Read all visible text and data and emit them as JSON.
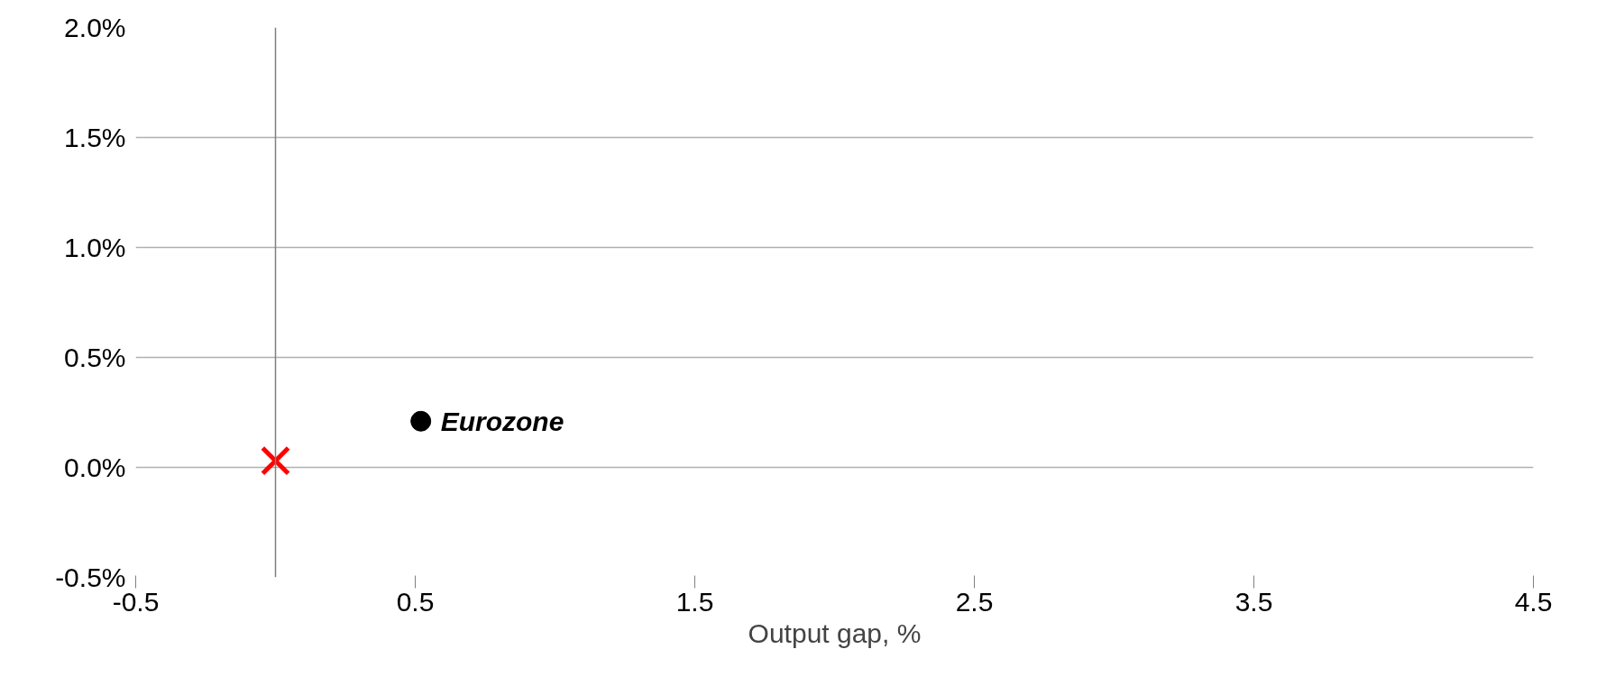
{
  "chart_data": {
    "type": "scatter",
    "xlabel": "Output gap, %",
    "xlim": [
      -0.5,
      4.5
    ],
    "xticks": [
      -0.5,
      0.5,
      1.5,
      2.5,
      3.5,
      4.5
    ],
    "ylim": [
      -0.5,
      2.0
    ],
    "yticks": [
      {
        "value": -0.5,
        "label": "-0.5%"
      },
      {
        "value": 0.0,
        "label": "0.0%"
      },
      {
        "value": 0.5,
        "label": "0.5%"
      },
      {
        "value": 1.0,
        "label": "1.0%"
      },
      {
        "value": 1.5,
        "label": "1.5%"
      },
      {
        "value": 2.0,
        "label": "2.0%"
      }
    ],
    "grid": "y",
    "ref_lines": [
      {
        "axis": "x",
        "value": 0,
        "color": "#808080"
      }
    ],
    "series": [
      {
        "name": "Eurozone",
        "color": "#000000",
        "marker": "circle",
        "x": [
          0.52
        ],
        "values": [
          0.21
        ]
      },
      {
        "color": "#ff0000",
        "marker": "cross",
        "x": [
          0.0
        ],
        "values": [
          0.03
        ]
      }
    ]
  }
}
